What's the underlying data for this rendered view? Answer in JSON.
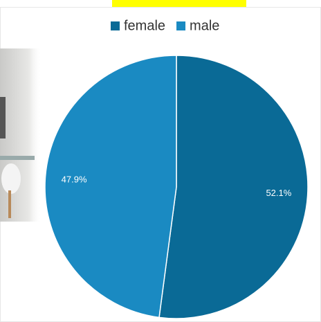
{
  "chart_data": {
    "type": "pie",
    "categories": [
      "female",
      "male"
    ],
    "values": [
      52.1,
      47.9
    ],
    "value_labels": [
      "52.1%",
      "47.9%"
    ],
    "colors": [
      "#0a6a96",
      "#1a8ac2"
    ],
    "legend": "top"
  }
}
